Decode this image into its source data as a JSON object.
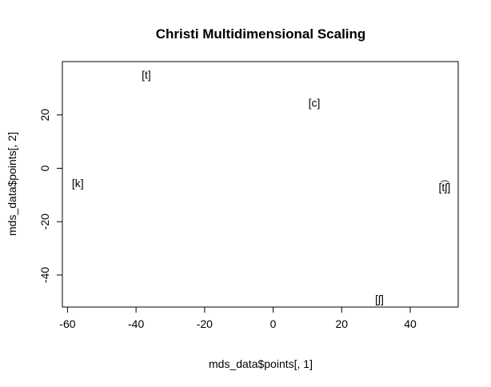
{
  "chart_data": {
    "type": "scatter",
    "title": "Christi Multidimensional Scaling",
    "xlabel": "mds_data$points[, 1]",
    "ylabel": "mds_data$points[, 2]",
    "xlim": [
      -61.5,
      54
    ],
    "ylim": [
      -52,
      40
    ],
    "xticks": [
      -60,
      -40,
      -20,
      0,
      20,
      40
    ],
    "yticks": [
      -40,
      -20,
      0,
      20
    ],
    "tick_labels_x": [
      "-60",
      "-40",
      "-20",
      "0",
      "20",
      "40"
    ],
    "tick_labels_y": [
      "-40",
      "-20",
      "0",
      "20"
    ],
    "grid": false,
    "markers": "text labels",
    "points": [
      {
        "label": "[t]",
        "x": -37,
        "y": 35
      },
      {
        "label": "[c]",
        "x": 12,
        "y": 24.5
      },
      {
        "label": "[k]",
        "x": -57,
        "y": -5.5
      },
      {
        "label": "[t͡ʃ]",
        "x": 50,
        "y": -7
      },
      {
        "label": "[ʃ]",
        "x": 31,
        "y": -49
      }
    ]
  }
}
